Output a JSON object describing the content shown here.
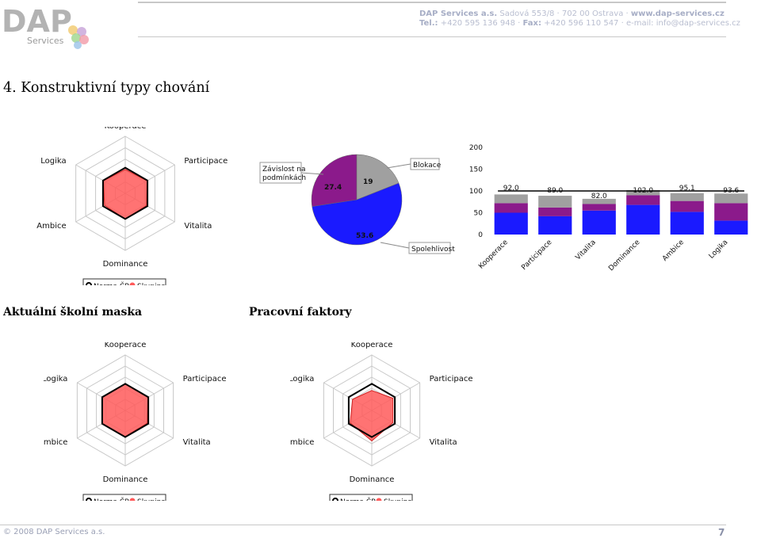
{
  "header": {
    "logo_text": "DAP",
    "logo_sub": "Services",
    "company": "DAP Services a.s.",
    "address": "Sadová 553/8 · 702 00 Ostrava ·",
    "web": "www.dap-services.cz",
    "tel_label": "Tel.:",
    "tel": "+420 595 136 948 ·",
    "fax_label": "Fax:",
    "fax": "+420 596 110 547 ·",
    "email": "e-mail: info@dap-services.cz"
  },
  "section_title": "4. Konstruktivní typy chování",
  "subtitle_left": "Aktuální školní maska",
  "subtitle_right": "Pracovní faktory",
  "radar_axes": [
    "Kooperace",
    "Participace",
    "Vitalita",
    "Dominance",
    "Ambice",
    "Logika"
  ],
  "legend": {
    "norma": "Norma ČR",
    "skupina": "Skupina"
  },
  "colors": {
    "skupina": "#ff5a5a",
    "norma": "#000000",
    "pie_blue": "#1a1aff",
    "pie_purple": "#8b1a8b",
    "pie_gray": "#a0a0a0"
  },
  "footer": {
    "copyright": "© 2008 DAP Services a.s.",
    "page": "7"
  },
  "chart_data": [
    {
      "type": "radar",
      "axes": [
        "Kooperace",
        "Participace",
        "Vitalita",
        "Dominance",
        "Ambice",
        "Logika"
      ],
      "series": [
        {
          "name": "Norma ČR",
          "values": [
            0.45,
            0.45,
            0.45,
            0.45,
            0.45,
            0.45
          ]
        },
        {
          "name": "Skupina",
          "values": [
            0.42,
            0.44,
            0.43,
            0.45,
            0.42,
            0.44
          ]
        }
      ]
    },
    {
      "type": "pie",
      "categories": [
        "Spolehlivost",
        "Závislost na podmínkách",
        "Blokace"
      ],
      "values": [
        53.6,
        27.4,
        19.0
      ]
    },
    {
      "type": "bar",
      "categories": [
        "Kooperace",
        "Participace",
        "Vitalita",
        "Dominance",
        "Ambice",
        "Logika"
      ],
      "stacked": true,
      "ylim": [
        0,
        200
      ],
      "yticks": [
        0,
        50,
        100,
        150,
        200
      ],
      "totals": [
        "92.0",
        "89.0",
        "82.0",
        "102.0",
        "95.1",
        "93.6"
      ],
      "series": [
        {
          "color": "#1a1aff",
          "values": [
            50,
            42,
            55,
            68,
            52,
            32
          ]
        },
        {
          "color": "#8b1a8b",
          "values": [
            22,
            20,
            15,
            22,
            25,
            40
          ]
        },
        {
          "color": "#a0a0a0",
          "values": [
            20,
            27,
            12,
            12,
            18,
            22
          ]
        }
      ],
      "line": [
        100,
        100,
        100,
        100,
        100,
        100
      ]
    },
    {
      "type": "radar",
      "axes": [
        "Kooperace",
        "Participace",
        "Vitalita",
        "Dominance",
        "Ambice",
        "Logika"
      ],
      "series": [
        {
          "name": "Norma ČR",
          "values": [
            0.48,
            0.48,
            0.48,
            0.48,
            0.48,
            0.48
          ]
        },
        {
          "name": "Skupina",
          "values": [
            0.48,
            0.47,
            0.46,
            0.47,
            0.48,
            0.47
          ]
        }
      ]
    },
    {
      "type": "radar",
      "axes": [
        "Kooperace",
        "Participace",
        "Vitalita",
        "Dominance",
        "Ambice",
        "Logika"
      ],
      "series": [
        {
          "name": "Norma ČR",
          "values": [
            0.48,
            0.48,
            0.48,
            0.48,
            0.48,
            0.48
          ]
        },
        {
          "name": "Skupina",
          "values": [
            0.36,
            0.44,
            0.44,
            0.55,
            0.45,
            0.4
          ]
        }
      ]
    }
  ]
}
